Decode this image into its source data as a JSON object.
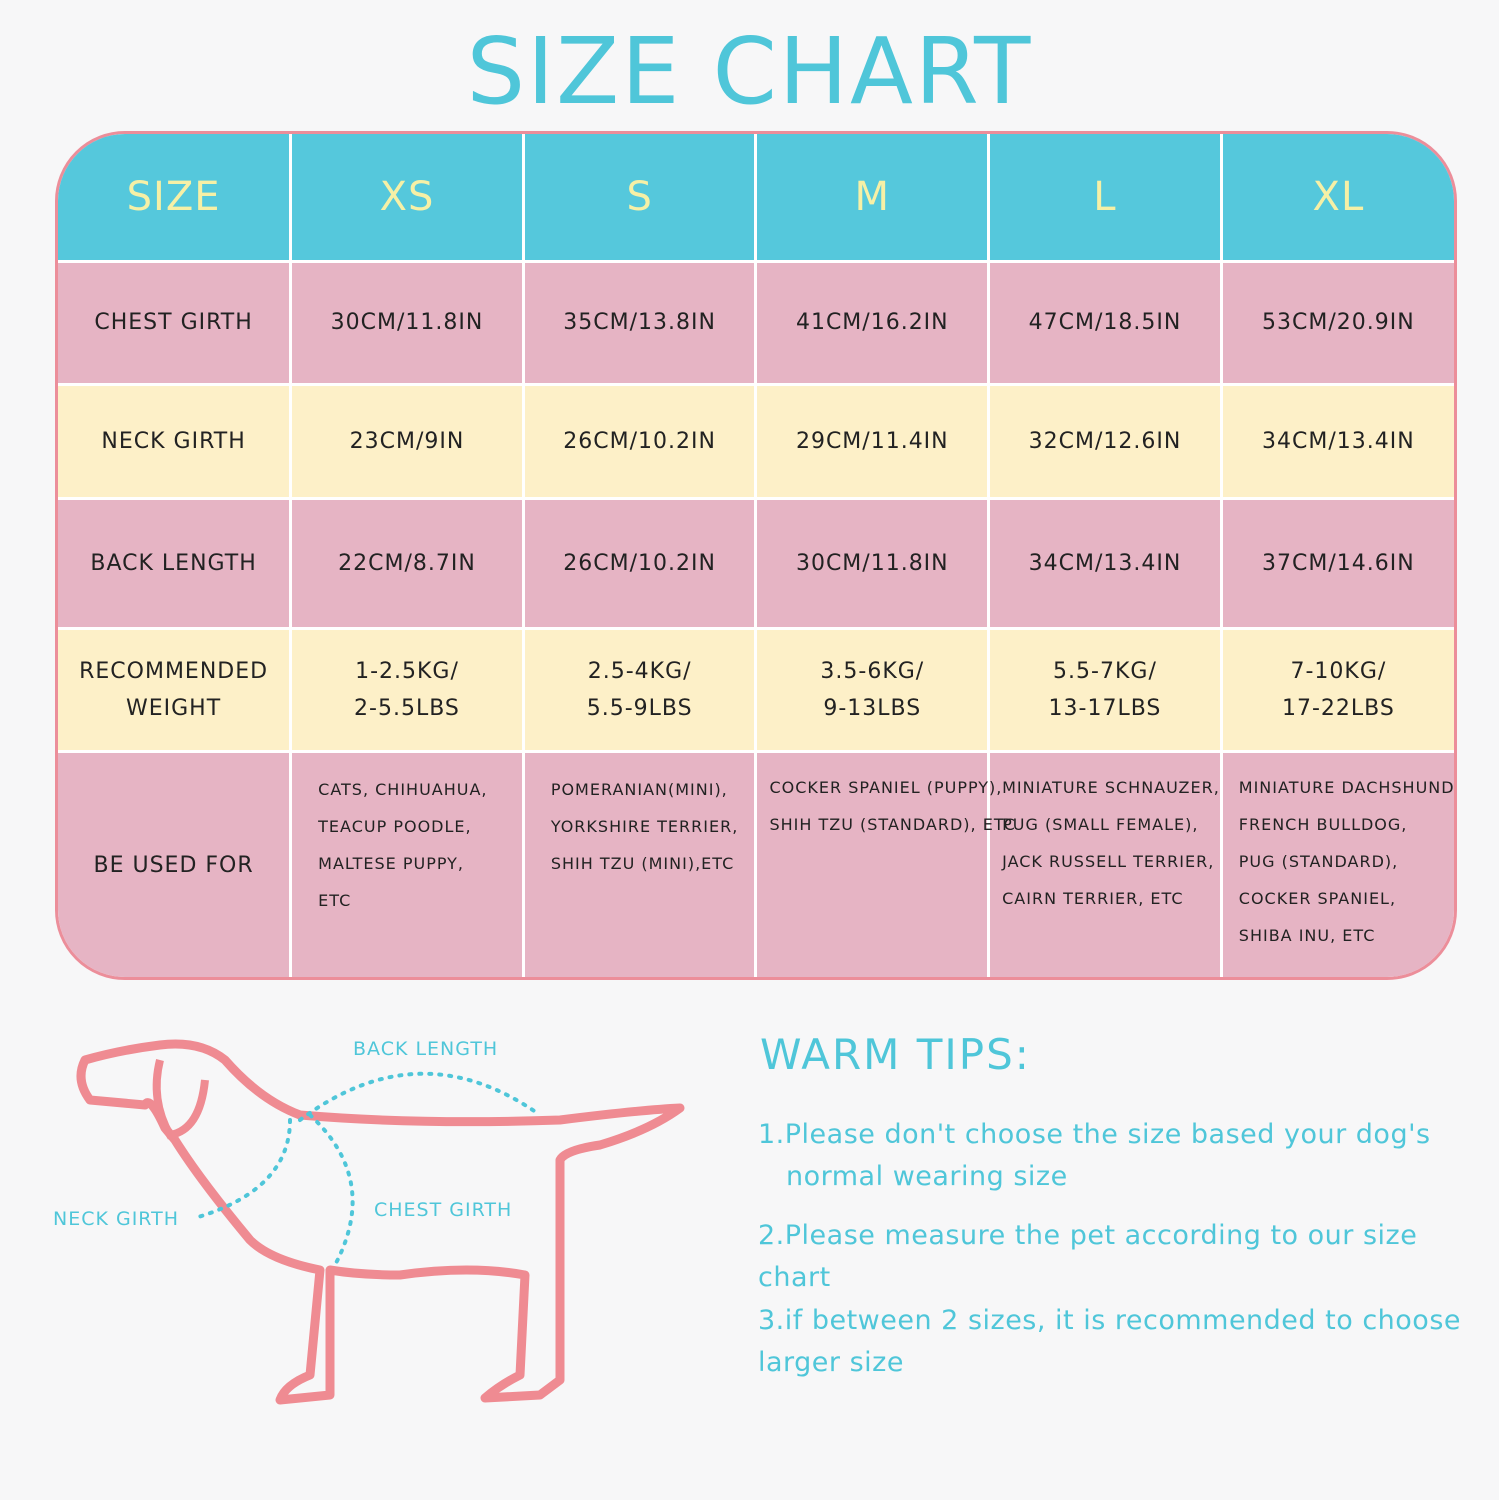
{
  "title": "SIZE CHART",
  "table": {
    "headers": [
      "SIZE",
      "XS",
      "S",
      "M",
      "L",
      "XL"
    ],
    "rows": [
      {
        "label": "CHEST GIRTH",
        "values": [
          "30CM/11.8IN",
          "35CM/13.8IN",
          "41CM/16.2IN",
          "47CM/18.5IN",
          "53CM/20.9IN"
        ]
      },
      {
        "label": "NECK GIRTH",
        "values": [
          "23CM/9IN",
          "26CM/10.2IN",
          "29CM/11.4IN",
          "32CM/12.6IN",
          "34CM/13.4IN"
        ]
      },
      {
        "label": "BACK LENGTH",
        "values": [
          "22CM/8.7IN",
          "26CM/10.2IN",
          "30CM/11.8IN",
          "34CM/13.4IN",
          "37CM/14.6IN"
        ]
      },
      {
        "label": [
          "RECOMMENDED",
          "WEIGHT"
        ],
        "values": [
          [
            "1-2.5KG/",
            "2-5.5LBS"
          ],
          [
            "2.5-4KG/",
            "5.5-9LBS"
          ],
          [
            "3.5-6KG/",
            "9-13LBS"
          ],
          [
            "5.5-7KG/",
            "13-17LBS"
          ],
          [
            "7-10KG/",
            "17-22LBS"
          ]
        ]
      },
      {
        "label": "BE USED FOR",
        "values": [
          [
            "CATS, CHIHUAHUA,",
            "TEACUP POODLE,",
            "MALTESE PUPPY,",
            "ETC"
          ],
          [
            "POMERANIAN(MINI),",
            "YORKSHIRE TERRIER,",
            "SHIH TZU (MINI),ETC"
          ],
          [
            "COCKER SPANIEL (PUPPY),",
            "SHIH TZU (STANDARD), ETC"
          ],
          [
            "MINIATURE SCHNAUZER,",
            "PUG (SMALL FEMALE),",
            "JACK RUSSELL TERRIER,",
            "CAIRN TERRIER, ETC"
          ],
          [
            "MINIATURE DACHSHUND,",
            "FRENCH BULLDOG,",
            "PUG (STANDARD),",
            "COCKER SPANIEL,",
            "SHIBA INU, ETC"
          ]
        ]
      }
    ]
  },
  "diagram": {
    "back_length": "BACK LENGTH",
    "neck_girth": "NECK GIRTH",
    "chest_girth": "CHEST GIRTH"
  },
  "tips": {
    "title": "WARM TIPS:",
    "items": [
      [
        "1.Please don't choose the size based your dog's",
        "normal wearing size"
      ],
      [
        "2.Please measure the pet according to our size chart"
      ],
      [
        "3.if between 2 sizes, it is recommended to choose",
        "larger size"
      ]
    ]
  },
  "colors": {
    "accent": "#4fc6d9",
    "pink": "#e6b4c4",
    "yellow": "#fdf0c8",
    "outline": "#ec8e9a"
  }
}
